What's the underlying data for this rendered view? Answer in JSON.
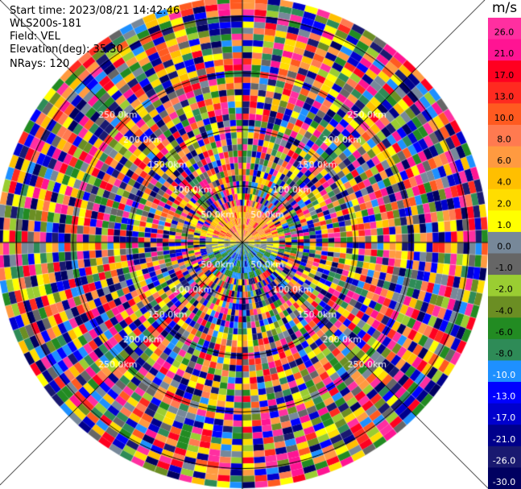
{
  "info": {
    "start_time": "Start time: 2023/08/21 14:42:46",
    "site": "WLS200s-181",
    "field": "Field: VEL",
    "elevation": "Elevation(deg): 35.30",
    "nrays": "NRays: 120"
  },
  "colorbar": {
    "unit": "m/s",
    "ticks": [
      "26.0",
      "21.0",
      "17.0",
      "13.0",
      "10.0",
      "8.0",
      "6.0",
      "4.0",
      "2.0",
      "1.0",
      "0.0",
      "-1.0",
      "-2.0",
      "-4.0",
      "-6.0",
      "-8.0",
      "-10.0",
      "-13.0",
      "-17.0",
      "-21.0",
      "-26.0",
      "-30.0"
    ],
    "colors": [
      "#ff2fa0",
      "#ff1493",
      "#ff0020",
      "#ff2a20",
      "#ff5a20",
      "#ff7a50",
      "#ff9a40",
      "#ffbf00",
      "#ffdd00",
      "#ffff00",
      "#778899",
      "#666666",
      "#9acd32",
      "#6b8e23",
      "#228b22",
      "#2e8b57",
      "#1e90ff",
      "#0000ff",
      "#0000cd",
      "#00008b",
      "#191970",
      "#000060"
    ]
  },
  "range_labels": [
    "50.0km",
    "100.0km",
    "150.0km",
    "200.0km",
    "250.0km"
  ],
  "palette": [
    "#ff2fa0",
    "#ff1493",
    "#ff0020",
    "#ff2a20",
    "#ff5a20",
    "#ff7a50",
    "#ff9a40",
    "#ffbf00",
    "#ffdd00",
    "#ffff00",
    "#778899",
    "#666666",
    "#9acd32",
    "#6b8e23",
    "#228b22",
    "#2e8b57",
    "#1e90ff",
    "#0000ff",
    "#0000cd",
    "#00008b",
    "#191970",
    "#000060"
  ]
}
